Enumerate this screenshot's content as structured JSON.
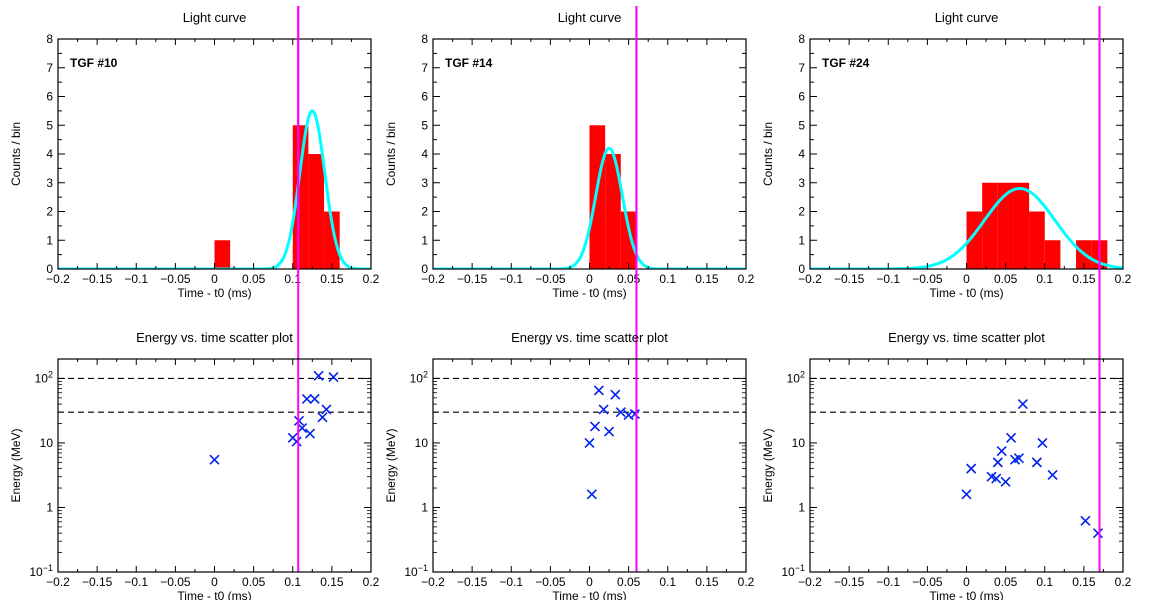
{
  "colors": {
    "bars": "#ff0000",
    "fit": "#00ffff",
    "marker": "#0022ee",
    "vline": "#ff00ff",
    "dashed": "#000000"
  },
  "chart_data": [
    {
      "type": "bar",
      "title": "Light curve",
      "annotation": "TGF #10",
      "xlabel": "Time - t0 (ms)",
      "ylabel": "Counts / bin",
      "xlim": [
        -0.2,
        0.2
      ],
      "ylim": [
        0,
        8
      ],
      "xticks": [
        "−0.2",
        "−0.15",
        "−0.1",
        "−0.05",
        "0",
        "0.05",
        "0.1",
        "0.15",
        "0.2"
      ],
      "yticks": [
        "0",
        "1",
        "2",
        "3",
        "4",
        "5",
        "6",
        "7",
        "8"
      ],
      "bin_width": 0.02,
      "bins": [
        {
          "x0": 0.0,
          "count": 1
        },
        {
          "x0": 0.1,
          "count": 5
        },
        {
          "x0": 0.12,
          "count": 4
        },
        {
          "x0": 0.14,
          "count": 2
        }
      ],
      "fit": {
        "mu": 0.125,
        "sigma": 0.016,
        "amplitude": 5.5
      },
      "vline_x": 0.107
    },
    {
      "type": "bar",
      "title": "Light curve",
      "annotation": "TGF #14",
      "xlabel": "Time - t0 (ms)",
      "ylabel": "Counts / bin",
      "xlim": [
        -0.2,
        0.2
      ],
      "ylim": [
        0,
        8
      ],
      "xticks": [
        "−0.2",
        "−0.15",
        "−0.1",
        "−0.05",
        "0",
        "0.05",
        "0.1",
        "0.15",
        "0.2"
      ],
      "yticks": [
        "0",
        "1",
        "2",
        "3",
        "4",
        "5",
        "6",
        "7",
        "8"
      ],
      "bin_width": 0.02,
      "bins": [
        {
          "x0": 0.0,
          "count": 5
        },
        {
          "x0": 0.02,
          "count": 4
        },
        {
          "x0": 0.04,
          "count": 2
        }
      ],
      "fit": {
        "mu": 0.025,
        "sigma": 0.017,
        "amplitude": 4.2
      },
      "vline_x": 0.06
    },
    {
      "type": "bar",
      "title": "Light curve",
      "annotation": "TGF #24",
      "xlabel": "Time - t0 (ms)",
      "ylabel": "Counts / bin",
      "xlim": [
        -0.2,
        0.2
      ],
      "ylim": [
        0,
        8
      ],
      "xticks": [
        "−0.2",
        "−0.15",
        "−0.1",
        "−0.05",
        "0",
        "0.05",
        "0.1",
        "0.15",
        "0.2"
      ],
      "yticks": [
        "0",
        "1",
        "2",
        "3",
        "4",
        "5",
        "6",
        "7",
        "8"
      ],
      "bin_width": 0.02,
      "bins": [
        {
          "x0": 0.0,
          "count": 2
        },
        {
          "x0": 0.02,
          "count": 3
        },
        {
          "x0": 0.04,
          "count": 3
        },
        {
          "x0": 0.06,
          "count": 3
        },
        {
          "x0": 0.08,
          "count": 2
        },
        {
          "x0": 0.1,
          "count": 1
        },
        {
          "x0": 0.14,
          "count": 1
        },
        {
          "x0": 0.16,
          "count": 1
        }
      ],
      "fit": {
        "mu": 0.068,
        "sigma": 0.045,
        "amplitude": 2.8
      },
      "vline_x": 0.17
    },
    {
      "type": "scatter",
      "title": "Energy vs. time scatter plot",
      "xlabel": "Time - t0 (ms)",
      "ylabel": "Energy (MeV)",
      "xlim": [
        -0.2,
        0.2
      ],
      "ylim": [
        0.1,
        200
      ],
      "yscale": "log",
      "xticks": [
        "−0.2",
        "−0.15",
        "−0.1",
        "−0.05",
        "0",
        "0.05",
        "0.1",
        "0.15",
        "0.2"
      ],
      "yticks": [
        {
          "value": 0.1,
          "base": "10",
          "exp": "−1"
        },
        {
          "value": 1,
          "base": "1",
          "exp": ""
        },
        {
          "value": 10,
          "base": "10",
          "exp": ""
        },
        {
          "value": 100,
          "base": "10",
          "exp": "2"
        }
      ],
      "hlines": [
        100,
        30
      ],
      "vline_x": 0.107,
      "points": [
        {
          "x": 0.0,
          "y": 5.5
        },
        {
          "x": 0.1,
          "y": 12
        },
        {
          "x": 0.105,
          "y": 10.5
        },
        {
          "x": 0.108,
          "y": 22
        },
        {
          "x": 0.112,
          "y": 17
        },
        {
          "x": 0.118,
          "y": 48
        },
        {
          "x": 0.122,
          "y": 14
        },
        {
          "x": 0.128,
          "y": 48
        },
        {
          "x": 0.133,
          "y": 110
        },
        {
          "x": 0.138,
          "y": 25
        },
        {
          "x": 0.143,
          "y": 33
        },
        {
          "x": 0.152,
          "y": 105
        }
      ]
    },
    {
      "type": "scatter",
      "title": "Energy vs. time scatter plot",
      "xlabel": "Time - t0 (ms)",
      "ylabel": "Energy (MeV)",
      "xlim": [
        -0.2,
        0.2
      ],
      "ylim": [
        0.1,
        200
      ],
      "yscale": "log",
      "xticks": [
        "−0.2",
        "−0.15",
        "−0.1",
        "−0.05",
        "0",
        "0.05",
        "0.1",
        "0.15",
        "0.2"
      ],
      "yticks": [
        {
          "value": 0.1,
          "base": "10",
          "exp": "−1"
        },
        {
          "value": 1,
          "base": "1",
          "exp": ""
        },
        {
          "value": 10,
          "base": "10",
          "exp": ""
        },
        {
          "value": 100,
          "base": "10",
          "exp": "2"
        }
      ],
      "hlines": [
        100,
        30
      ],
      "vline_x": 0.06,
      "points": [
        {
          "x": 0.0,
          "y": 10
        },
        {
          "x": 0.003,
          "y": 1.6
        },
        {
          "x": 0.007,
          "y": 18
        },
        {
          "x": 0.012,
          "y": 65
        },
        {
          "x": 0.018,
          "y": 33
        },
        {
          "x": 0.025,
          "y": 15
        },
        {
          "x": 0.033,
          "y": 56
        },
        {
          "x": 0.04,
          "y": 30
        },
        {
          "x": 0.05,
          "y": 27
        },
        {
          "x": 0.058,
          "y": 28
        }
      ]
    },
    {
      "type": "scatter",
      "title": "Energy vs. time scatter plot",
      "xlabel": "Time - t0 (ms)",
      "ylabel": "Energy (MeV)",
      "xlim": [
        -0.2,
        0.2
      ],
      "ylim": [
        0.1,
        200
      ],
      "yscale": "log",
      "xticks": [
        "−0.2",
        "−0.15",
        "−0.1",
        "−0.05",
        "0",
        "0.05",
        "0.1",
        "0.15",
        "0.2"
      ],
      "yticks": [
        {
          "value": 0.1,
          "base": "10",
          "exp": "−1"
        },
        {
          "value": 1,
          "base": "1",
          "exp": ""
        },
        {
          "value": 10,
          "base": "10",
          "exp": ""
        },
        {
          "value": 100,
          "base": "10",
          "exp": "2"
        }
      ],
      "hlines": [
        100,
        30
      ],
      "vline_x": 0.17,
      "points": [
        {
          "x": 0.0,
          "y": 1.6
        },
        {
          "x": 0.006,
          "y": 4.0
        },
        {
          "x": 0.032,
          "y": 3.0
        },
        {
          "x": 0.038,
          "y": 2.8
        },
        {
          "x": 0.04,
          "y": 5.0
        },
        {
          "x": 0.045,
          "y": 7.5
        },
        {
          "x": 0.05,
          "y": 2.5
        },
        {
          "x": 0.057,
          "y": 12
        },
        {
          "x": 0.062,
          "y": 5.5
        },
        {
          "x": 0.067,
          "y": 5.8
        },
        {
          "x": 0.072,
          "y": 40
        },
        {
          "x": 0.09,
          "y": 5.0
        },
        {
          "x": 0.097,
          "y": 10
        },
        {
          "x": 0.11,
          "y": 3.2
        },
        {
          "x": 0.152,
          "y": 0.62
        },
        {
          "x": 0.168,
          "y": 0.4
        }
      ]
    }
  ]
}
